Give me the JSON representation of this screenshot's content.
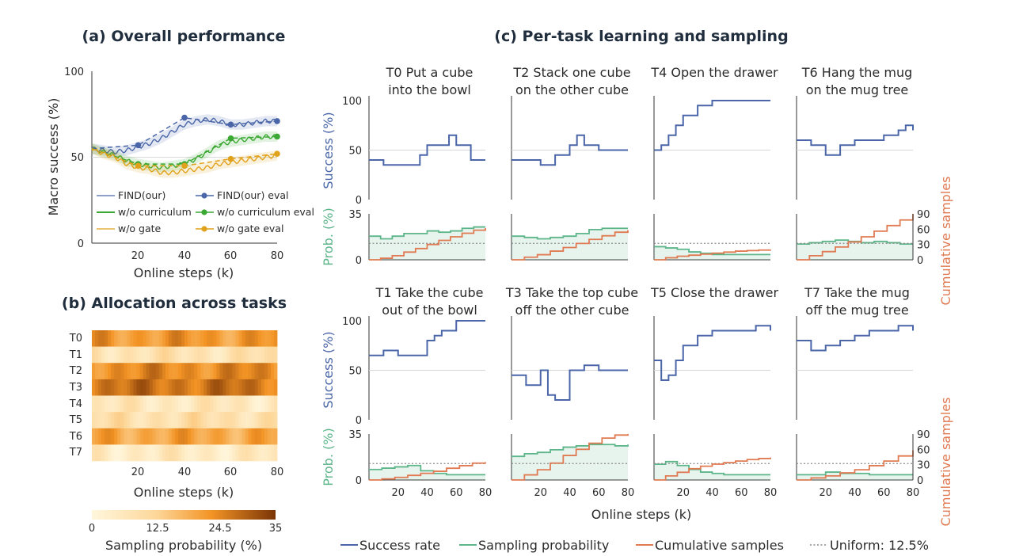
{
  "figure": {
    "panel_a_title": "(a) Overall performance",
    "panel_b_title": "(b) Allocation across tasks",
    "panel_c_title": "(c) Per-task learning and sampling",
    "bottom_legend": {
      "success": "Success rate",
      "prob": "Sampling probability",
      "cum": "Cumulative samples",
      "uniform": "Uniform: 12.5%"
    }
  },
  "chart_data": [
    {
      "id": "a",
      "type": "line",
      "title": "(a) Overall performance",
      "xlabel": "Online steps (k)",
      "ylabel": "Macro success (%)",
      "xlim": [
        0,
        80
      ],
      "ylim": [
        0,
        100
      ],
      "xticks": [
        "20",
        "40",
        "60",
        "80"
      ],
      "yticks": [
        "0",
        "50",
        "100"
      ],
      "x": [
        0,
        5,
        10,
        15,
        20,
        25,
        30,
        35,
        40,
        45,
        50,
        55,
        60,
        65,
        70,
        75,
        80
      ],
      "series": [
        {
          "name": "FIND(our)",
          "color": "#4a66a8",
          "values": [
            55,
            54,
            53,
            54,
            56,
            58,
            61,
            65,
            69,
            71,
            72,
            71,
            69,
            69,
            70,
            71,
            71
          ]
        },
        {
          "name": "w/o curriculum",
          "color": "#3aa832",
          "values": [
            55,
            53,
            51,
            48,
            46,
            45,
            44,
            45,
            46,
            49,
            53,
            57,
            59,
            60,
            61,
            62,
            62
          ]
        },
        {
          "name": "w/o gate",
          "color": "#e0a21a",
          "values": [
            55,
            52,
            50,
            46,
            44,
            43,
            41,
            41,
            42,
            43,
            44,
            46,
            47,
            48,
            49,
            50,
            51
          ]
        }
      ],
      "eval_series": [
        {
          "name": "FIND(our) eval",
          "color": "#4a66a8",
          "x": [
            0,
            20,
            40,
            60,
            80
          ],
          "values": [
            55,
            57,
            73,
            69,
            71
          ]
        },
        {
          "name": "w/o curriculum eval",
          "color": "#3aa832",
          "x": [
            0,
            20,
            40,
            60,
            80
          ],
          "values": [
            55,
            46,
            46,
            61,
            62
          ]
        },
        {
          "name": "w/o gate eval",
          "color": "#e0a21a",
          "x": [
            0,
            20,
            40,
            60,
            80
          ],
          "values": [
            55,
            45,
            45,
            49,
            52
          ]
        }
      ],
      "grid": false,
      "reference_line": 50,
      "legend_position": "bottom"
    },
    {
      "id": "b",
      "type": "heatmap",
      "title": "(b) Allocation across tasks",
      "xlabel": "Online steps (k)",
      "xlim": [
        0,
        80
      ],
      "xticks": [
        "20",
        "40",
        "60",
        "80"
      ],
      "rows": [
        "T0",
        "T1",
        "T2",
        "T3",
        "T4",
        "T5",
        "T6",
        "T7"
      ],
      "row_means": [
        22,
        8,
        24,
        27,
        6,
        9,
        20,
        5
      ],
      "colorbar_label": "Sampling probability (%)",
      "colorbar_ticks": [
        "0",
        "12.5",
        "24.5",
        "35"
      ],
      "colorbar_range": [
        0,
        35
      ]
    },
    {
      "id": "c",
      "type": "line",
      "title": "(c) Per-task learning and sampling",
      "xlabel": "Online steps (k)",
      "success_ylabel": "Success (%)",
      "prob_ylabel": "Prob. (%)",
      "cum_ylabel": "Cumulative samples",
      "success_yticks": [
        "0",
        "50",
        "100"
      ],
      "prob_yticks": [
        "0",
        "35"
      ],
      "cum_yticks": [
        "0",
        "30",
        "60",
        "90"
      ],
      "xticks": [
        "20",
        "40",
        "60",
        "80"
      ],
      "xlim": [
        0,
        80
      ],
      "success_ylim": [
        0,
        100
      ],
      "prob_ylim": [
        0,
        35
      ],
      "cum_ylim": [
        0,
        90
      ],
      "uniform": 12.5,
      "tasks": [
        {
          "id": "T0",
          "line1": "T0 Put a cube",
          "line2": "into the bowl",
          "success_x": [
            0,
            10,
            20,
            35,
            40,
            50,
            55,
            60,
            65,
            70,
            80
          ],
          "success": [
            40,
            35,
            35,
            45,
            55,
            55,
            65,
            55,
            55,
            40,
            40
          ],
          "prob": [
            18,
            16,
            18,
            20,
            20,
            22,
            21,
            22,
            24,
            25,
            25
          ],
          "cum": [
            0,
            3,
            8,
            15,
            22,
            30,
            38,
            45,
            52,
            58,
            62
          ]
        },
        {
          "id": "T2",
          "line1": "T2 Stack one cube",
          "line2": "on the other cube",
          "success_x": [
            0,
            10,
            20,
            30,
            40,
            45,
            50,
            60,
            70,
            80
          ],
          "success": [
            40,
            40,
            35,
            45,
            55,
            65,
            55,
            50,
            50,
            50
          ],
          "prob": [
            18,
            17,
            16,
            17,
            18,
            20,
            23,
            24,
            24,
            24
          ],
          "cum": [
            0,
            5,
            10,
            17,
            24,
            32,
            40,
            47,
            54,
            58
          ]
        },
        {
          "id": "T4",
          "line1": "T4 Open the drawer",
          "line2": "",
          "success_x": [
            0,
            5,
            10,
            15,
            20,
            30,
            40,
            50,
            60,
            70,
            80
          ],
          "success": [
            50,
            55,
            65,
            75,
            85,
            95,
            100,
            100,
            100,
            100,
            100
          ],
          "prob": [
            10,
            9,
            8,
            6,
            5,
            4,
            4,
            4,
            4,
            4,
            4
          ],
          "cum": [
            0,
            4,
            7,
            9,
            11,
            13,
            15,
            17,
            18,
            19,
            20
          ]
        },
        {
          "id": "T6",
          "line1": "T6 Hang the mug",
          "line2": "on the mug tree",
          "success_x": [
            0,
            10,
            20,
            30,
            40,
            50,
            60,
            70,
            75,
            80
          ],
          "success": [
            60,
            55,
            45,
            55,
            60,
            60,
            65,
            70,
            75,
            70
          ],
          "prob": [
            12,
            13,
            14,
            15,
            14,
            13,
            14,
            13,
            12,
            12
          ],
          "cum": [
            0,
            8,
            16,
            25,
            35,
            45,
            56,
            67,
            78,
            90
          ]
        },
        {
          "id": "T1",
          "line1": "T1 Take the cube",
          "line2": "out of the bowl",
          "success_x": [
            0,
            10,
            20,
            30,
            40,
            45,
            50,
            60,
            70,
            80
          ],
          "success": [
            65,
            70,
            65,
            65,
            80,
            85,
            90,
            100,
            100,
            100
          ],
          "prob": [
            8,
            9,
            10,
            11,
            7,
            5,
            4,
            4,
            4,
            4
          ],
          "cum": [
            0,
            2,
            5,
            9,
            13,
            17,
            23,
            28,
            33,
            35
          ]
        },
        {
          "id": "T3",
          "line1": "T3 Take the top cube",
          "line2": "off the other cube",
          "success_x": [
            0,
            10,
            20,
            25,
            30,
            40,
            50,
            60,
            70,
            80
          ],
          "success": [
            45,
            35,
            50,
            25,
            20,
            50,
            55,
            50,
            50,
            50
          ],
          "prob": [
            18,
            20,
            21,
            23,
            25,
            26,
            27,
            27,
            26,
            27
          ],
          "cum": [
            0,
            10,
            20,
            33,
            48,
            60,
            72,
            82,
            88,
            90
          ]
        },
        {
          "id": "T5",
          "line1": "T5 Close the drawer",
          "line2": "",
          "success_x": [
            0,
            5,
            10,
            15,
            20,
            30,
            40,
            50,
            60,
            70,
            80
          ],
          "success": [
            60,
            40,
            45,
            60,
            75,
            85,
            90,
            90,
            90,
            95,
            90
          ],
          "prob": [
            12,
            14,
            11,
            8,
            6,
            5,
            4,
            4,
            4,
            4,
            4
          ],
          "cum": [
            0,
            8,
            15,
            22,
            27,
            31,
            34,
            37,
            40,
            42,
            44
          ]
        },
        {
          "id": "T7",
          "line1": "T7 Take the mug",
          "line2": "off the mug tree",
          "success_x": [
            0,
            10,
            20,
            30,
            40,
            50,
            60,
            70,
            80
          ],
          "success": [
            80,
            70,
            75,
            80,
            85,
            90,
            90,
            95,
            90
          ],
          "prob": [
            4,
            4,
            6,
            5,
            5,
            4,
            4,
            4,
            4
          ],
          "cum": [
            0,
            4,
            8,
            14,
            20,
            28,
            37,
            47,
            58
          ]
        }
      ]
    }
  ]
}
